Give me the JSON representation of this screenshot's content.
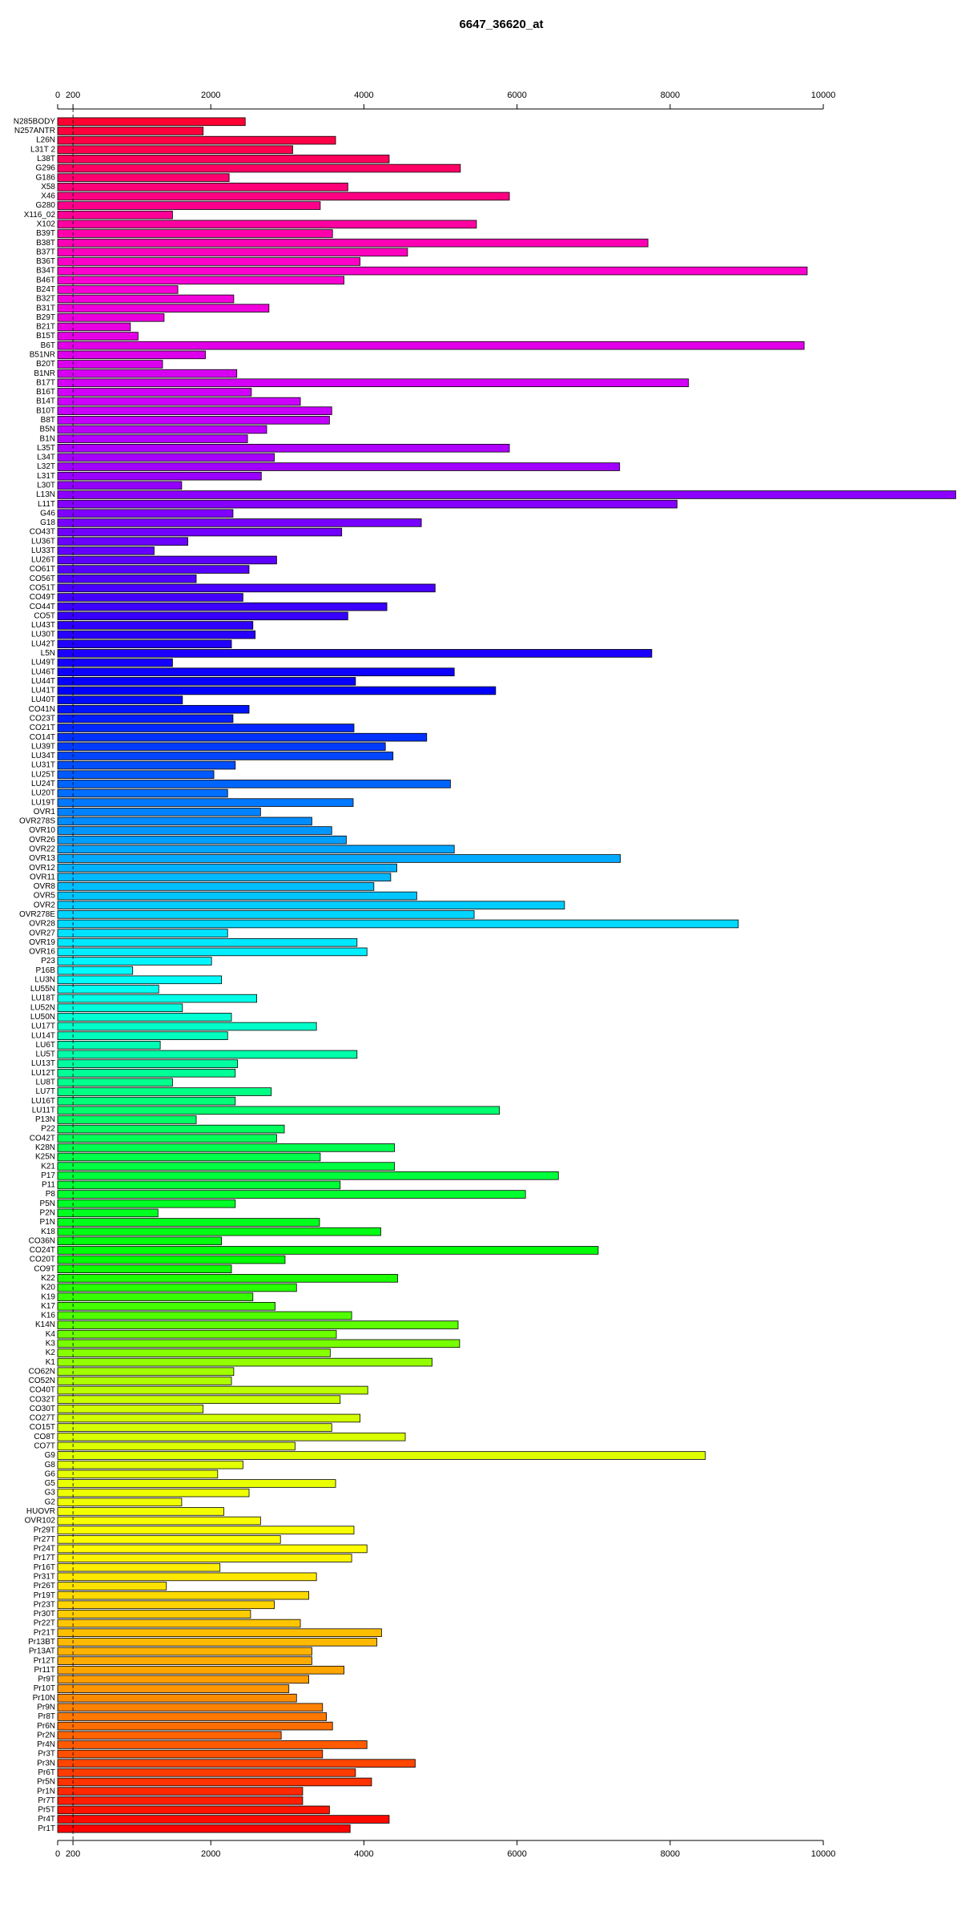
{
  "chart_data": {
    "type": "barh",
    "title": "6647_36620_at",
    "categories": [
      "N285BODY",
      "N257ANTR",
      "L26N",
      "L31T 2",
      "L38T",
      "G296",
      "G186",
      "X58",
      "X46",
      "G280",
      "X116_02",
      "X102",
      "B39T",
      "B38T",
      "B37T",
      "B36T",
      "B34T",
      "B46T",
      "B24T",
      "B32T",
      "B31T",
      "B29T",
      "B21T",
      "B15T",
      "B6T",
      "B51NR",
      "B20T",
      "B1NR",
      "B17T",
      "B16T",
      "B14T",
      "B10T",
      "B8T",
      "B5N",
      "B1N",
      "L35T",
      "L34T",
      "L32T",
      "L31T",
      "L30T",
      "L13N",
      "L11T",
      "G46",
      "G18",
      "CO43T",
      "LU36T",
      "LU33T",
      "LU26T",
      "CO61T",
      "CO56T",
      "CO51T",
      "CO49T",
      "CO44T",
      "CO5T",
      "LU43T",
      "LU30T",
      "LU42T",
      "L5N",
      "LU49T",
      "LU46T",
      "LU44T",
      "LU41T",
      "LU40T",
      "CO41N",
      "CO23T",
      "CO21T",
      "CO14T",
      "LU39T",
      "LU34T",
      "LU31T",
      "LU25T",
      "LU24T",
      "LU20T",
      "LU19T",
      "OVR1",
      "OVR278S",
      "OVR10",
      "OVR26",
      "OVR22",
      "OVR13",
      "OVR12",
      "OVR11",
      "OVR8",
      "OVR5",
      "OVR2",
      "OVR278E",
      "OVR28",
      "OVR27",
      "OVR19",
      "OVR16",
      "P23",
      "P16B",
      "LU3N",
      "LU55N",
      "LU18T",
      "LU52N",
      "LU50N",
      "LU17T",
      "LU14T",
      "LU6T",
      "LU5T",
      "LU13T",
      "LU12T",
      "LU8T",
      "LU7T",
      "LU16T",
      "LU11T",
      "P13N",
      "P22",
      "CO42T",
      "K28N",
      "K25N",
      "K21",
      "P17",
      "P11",
      "P8",
      "P5N",
      "P2N",
      "P1N",
      "K18",
      "CO36N",
      "CO24T",
      "CO20T",
      "CO9T",
      "K22",
      "K20",
      "K19",
      "K17",
      "K16",
      "K14N",
      "K4",
      "K3",
      "K2",
      "K1",
      "CO62N",
      "CO52N",
      "CO40T",
      "CO32T",
      "CO30T",
      "CO27T",
      "CO15T",
      "CO8T",
      "CO7T",
      "G9",
      "G8",
      "G6",
      "G5",
      "G3",
      "G2",
      "HUOVR",
      "OVR102",
      "Pr29T",
      "Pr27T",
      "Pr24T",
      "Pr17T",
      "Pr16T",
      "Pr31T",
      "Pr26T",
      "Pr19T",
      "Pr23T",
      "Pr30T",
      "Pr22T",
      "Pr21T",
      "Pr13BT",
      "Pr13AT",
      "Pr12T",
      "Pr11T",
      "Pr9T",
      "Pr10T",
      "Pr10N",
      "Pr9N",
      "Pr8T",
      "Pr6N",
      "Pr2N",
      "Pr4N",
      "Pr3T",
      "Pr3N",
      "Pr6T",
      "Pr5N",
      "Pr1N",
      "Pr7T",
      "Pr5T",
      "Pr4T",
      "Pr1T"
    ],
    "values": [
      2450,
      1900,
      3630,
      3070,
      4330,
      5260,
      2240,
      3790,
      5900,
      3430,
      1500,
      5470,
      3590,
      7710,
      4570,
      3950,
      9790,
      3740,
      1570,
      2300,
      2760,
      1390,
      950,
      1050,
      9750,
      1930,
      1370,
      2340,
      8240,
      2530,
      3170,
      3580,
      3550,
      2730,
      2480,
      5900,
      2830,
      7340,
      2660,
      1620,
      11730,
      8090,
      2290,
      4750,
      3710,
      1700,
      1260,
      2860,
      2500,
      1810,
      4930,
      2420,
      4300,
      3790,
      2550,
      2580,
      2270,
      7760,
      1500,
      5180,
      3890,
      5720,
      1630,
      2500,
      2290,
      3870,
      4820,
      4280,
      4380,
      2320,
      2040,
      5130,
      2220,
      3860,
      2650,
      3320,
      3580,
      3770,
      5180,
      7350,
      4430,
      4350,
      4130,
      4690,
      6620,
      5440,
      8890,
      2220,
      3910,
      4040,
      2010,
      980,
      2140,
      1320,
      2600,
      1630,
      2270,
      3380,
      2220,
      1340,
      3910,
      2350,
      2320,
      1500,
      2790,
      2320,
      5770,
      1810,
      2960,
      2860,
      4400,
      3430,
      4400,
      6540,
      3690,
      6110,
      2320,
      1310,
      3420,
      4220,
      2140,
      7060,
      2970,
      2270,
      4440,
      3120,
      2550,
      2840,
      3840,
      5230,
      3640,
      5250,
      3560,
      4890,
      2300,
      2270,
      4050,
      3690,
      1900,
      3950,
      3580,
      4540,
      3100,
      8460,
      2420,
      2090,
      3630,
      2500,
      1620,
      2170,
      2650,
      3870,
      2910,
      4040,
      3840,
      2120,
      3380,
      1420,
      3280,
      2830,
      2520,
      3170,
      4230,
      4170,
      3320,
      3320,
      3740,
      3280,
      3020,
      3120,
      3460,
      3510,
      3590,
      2920,
      4040,
      3460,
      4670,
      3890,
      4100,
      3200,
      3200,
      3550,
      4330,
      3820
    ],
    "colors": [
      "#ff0033",
      "#ff00cc",
      "#cc00ff",
      "#6600ff",
      "#0000ff",
      "#0099ff",
      "#00ffff",
      "#00ff66",
      "#00ff00",
      "#ccff00",
      "#ffff00",
      "#ff9900",
      "#ff0000"
    ],
    "xlim": [
      0,
      11736
    ],
    "xticks": [
      0,
      200,
      2000,
      4000,
      6000,
      8000,
      10000
    ],
    "vline": 200
  }
}
